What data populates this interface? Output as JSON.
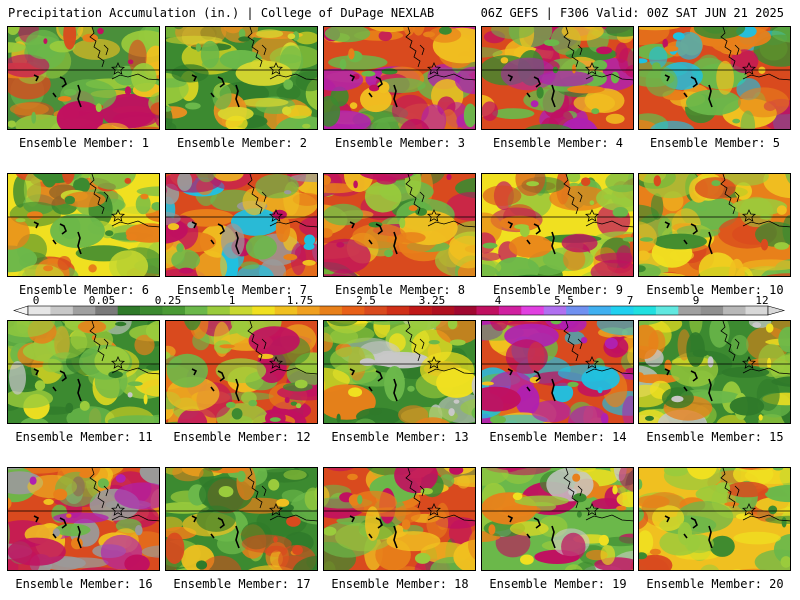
{
  "header": {
    "left": "Precipitation Accumulation (in.) | College of DuPage NEXLAB",
    "right": "06Z GEFS | F306 Valid: 00Z SAT JUN 21 2025"
  },
  "caption_prefix": "Ensemble Member:",
  "members": [
    {
      "id": "1",
      "label": "Ensemble Member: 1",
      "palette": [
        "#4a8f3a",
        "#d94a1e",
        "#f0c020",
        "#6bb84a",
        "#e8801a",
        "#9acb3c",
        "#c01060"
      ]
    },
    {
      "id": "2",
      "label": "Ensemble Member: 2",
      "palette": [
        "#3c8a30",
        "#6bb84a",
        "#f0e020",
        "#d8d830",
        "#e89020",
        "#9acb3c",
        "#2f7a2a"
      ]
    },
    {
      "id": "3",
      "label": "Ensemble Member: 3",
      "palette": [
        "#d94a1e",
        "#e8801a",
        "#f0c020",
        "#6bb84a",
        "#c01060",
        "#b020b0",
        "#3c8a30"
      ]
    },
    {
      "id": "4",
      "label": "Ensemble Member: 4",
      "palette": [
        "#d94a1e",
        "#f0c020",
        "#e8801a",
        "#6bb84a",
        "#c01060",
        "#b020b0",
        "#3c8a30"
      ]
    },
    {
      "id": "5",
      "label": "Ensemble Member: 5",
      "palette": [
        "#d94a1e",
        "#f0c020",
        "#6bb84a",
        "#e8801a",
        "#c01060",
        "#20c0e0",
        "#3c8a30"
      ]
    },
    {
      "id": "6",
      "label": "Ensemble Member: 6",
      "palette": [
        "#f0e020",
        "#6bb84a",
        "#9acb3c",
        "#3c8a30",
        "#e8801a",
        "#d94a1e",
        "#c8d830"
      ]
    },
    {
      "id": "7",
      "label": "Ensemble Member: 7",
      "palette": [
        "#d94a1e",
        "#e8801a",
        "#f0c020",
        "#c01060",
        "#6bb84a",
        "#20c0e0",
        "#9a9a9a"
      ]
    },
    {
      "id": "8",
      "label": "Ensemble Member: 8",
      "palette": [
        "#d94a1e",
        "#f0c020",
        "#6bb84a",
        "#e8801a",
        "#c01060",
        "#9acb3c",
        "#3c8a30"
      ]
    },
    {
      "id": "9",
      "label": "Ensemble Member: 9",
      "palette": [
        "#f0e020",
        "#9acb3c",
        "#e8801a",
        "#6bb84a",
        "#d94a1e",
        "#c01060",
        "#3c8a30"
      ]
    },
    {
      "id": "10",
      "label": "Ensemble Member: 10",
      "palette": [
        "#e8801a",
        "#f0c020",
        "#d94a1e",
        "#6bb84a",
        "#9acb3c",
        "#3c8a30",
        "#f0e020"
      ]
    },
    {
      "id": "11",
      "label": "Ensemble Member: 11",
      "palette": [
        "#3c8a30",
        "#6bb84a",
        "#2f7a2a",
        "#9acb3c",
        "#f0e020",
        "#c8c8c8",
        "#e8801a"
      ]
    },
    {
      "id": "12",
      "label": "Ensemble Member: 12",
      "palette": [
        "#d94a1e",
        "#f0c020",
        "#6bb84a",
        "#e8801a",
        "#9acb3c",
        "#3c8a30",
        "#c01060"
      ]
    },
    {
      "id": "13",
      "label": "Ensemble Member: 13",
      "palette": [
        "#3c8a30",
        "#6bb84a",
        "#9acb3c",
        "#f0e020",
        "#2f7a2a",
        "#c8c8c8",
        "#e8801a"
      ]
    },
    {
      "id": "14",
      "label": "Ensemble Member: 14",
      "palette": [
        "#d94a1e",
        "#e8801a",
        "#f0c020",
        "#c01060",
        "#20c0e0",
        "#b020b0",
        "#6bb84a"
      ]
    },
    {
      "id": "15",
      "label": "Ensemble Member: 15",
      "palette": [
        "#3c8a30",
        "#6bb84a",
        "#f0e020",
        "#9acb3c",
        "#e8801a",
        "#c8c8c8",
        "#2f7a2a"
      ]
    },
    {
      "id": "16",
      "label": "Ensemble Member: 16",
      "palette": [
        "#d94a1e",
        "#e8801a",
        "#f0c020",
        "#c01060",
        "#6bb84a",
        "#9a9a9a",
        "#b020b0"
      ]
    },
    {
      "id": "17",
      "label": "Ensemble Member: 17",
      "palette": [
        "#3c8a30",
        "#e8801a",
        "#d94a1e",
        "#6bb84a",
        "#f0c020",
        "#2f7a2a",
        "#9acb3c"
      ]
    },
    {
      "id": "18",
      "label": "Ensemble Member: 18",
      "palette": [
        "#d94a1e",
        "#f0c020",
        "#e8801a",
        "#6bb84a",
        "#3c8a30",
        "#c01060",
        "#9acb3c"
      ]
    },
    {
      "id": "19",
      "label": "Ensemble Member: 19",
      "palette": [
        "#6bb84a",
        "#3c8a30",
        "#f0e020",
        "#9acb3c",
        "#e8801a",
        "#c01060",
        "#c8c8c8"
      ]
    },
    {
      "id": "20",
      "label": "Ensemble Member: 20",
      "palette": [
        "#f0c020",
        "#e8801a",
        "#d94a1e",
        "#6bb84a",
        "#9acb3c",
        "#3c8a30",
        "#f0e020"
      ]
    }
  ],
  "colorbar": {
    "labels": [
      "0",
      "0.05",
      "0.25",
      "1",
      "1.75",
      "2.5",
      "3.25",
      "4",
      "5.5",
      "7",
      "9",
      "12"
    ],
    "colors": [
      "#e6e6e6",
      "#c8c8c8",
      "#a0a0a0",
      "#7a7a7a",
      "#2f7a2a",
      "#3c8a30",
      "#4a9a35",
      "#6bb84a",
      "#9acb3c",
      "#c8d830",
      "#f0e020",
      "#f0c020",
      "#f0a020",
      "#e8801a",
      "#e86018",
      "#d94a1e",
      "#d03018",
      "#c01818",
      "#b01020",
      "#a00830",
      "#c01060",
      "#d020a0",
      "#e040e0",
      "#b070f0",
      "#7090f0",
      "#40b0f0",
      "#20d0f0",
      "#20e0e0",
      "#60e8e0",
      "#a0a0a0",
      "#909090",
      "#b8b8b8",
      "#d8d8d8"
    ]
  }
}
